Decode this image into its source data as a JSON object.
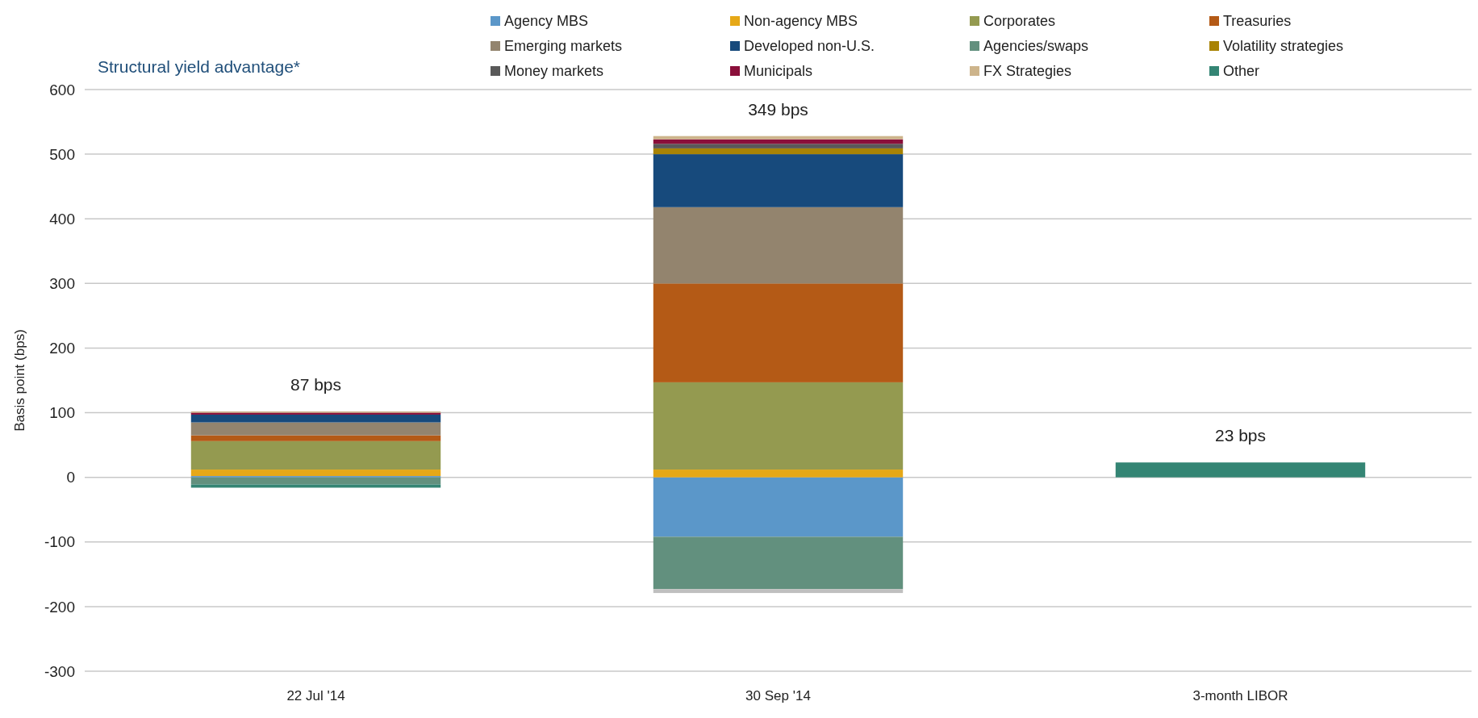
{
  "chart_data": {
    "type": "bar",
    "stacked": true,
    "title": "Structural yield advantage*",
    "ylabel": "Basis point (bps)",
    "categories": [
      "22 Jul '14",
      "30 Sep '14",
      "3-month LIBOR"
    ],
    "series": [
      {
        "name": "Agency MBS",
        "color": "#5b97c9",
        "values": [
          2,
          -92,
          null
        ]
      },
      {
        "name": "Non-agency MBS",
        "color": "#e6a817",
        "values": [
          10,
          12,
          null
        ]
      },
      {
        "name": "Corporates",
        "color": "#949a50",
        "values": [
          44,
          135,
          null
        ]
      },
      {
        "name": "Treasuries",
        "color": "#b45a16",
        "values": [
          9,
          153,
          null
        ]
      },
      {
        "name": "Emerging markets",
        "color": "#93846e",
        "values": [
          20,
          118,
          null
        ]
      },
      {
        "name": "Developed non-U.S.",
        "color": "#174a7c",
        "values": [
          12,
          82,
          null
        ]
      },
      {
        "name": "Agencies/swaps",
        "color": "#62907e",
        "values": [
          -11,
          -81,
          null
        ]
      },
      {
        "name": "Volatility strategies",
        "color": "#a88304",
        "values": [
          null,
          9,
          null
        ]
      },
      {
        "name": "Money markets",
        "color": "#595959",
        "values": [
          null,
          7,
          null
        ]
      },
      {
        "name": "Municipals",
        "color": "#8a0f3a",
        "values": [
          3,
          7,
          null
        ]
      },
      {
        "name": "FX Strategies",
        "color": "#cdb48b",
        "values": [
          2,
          5,
          null
        ]
      },
      {
        "name": "Other",
        "color": "#348574",
        "values": [
          -5,
          null,
          23
        ]
      },
      {
        "color": "#bfbfbf",
        "values": [
          null,
          -6,
          null
        ]
      }
    ],
    "totals": [
      "87 bps",
      "349 bps",
      "23 bps"
    ],
    "ylim": [
      -300,
      600
    ],
    "yticks": [
      -300,
      -200,
      -100,
      0,
      100,
      200,
      300,
      400,
      500,
      600
    ],
    "grid": "y",
    "legend": "top"
  }
}
